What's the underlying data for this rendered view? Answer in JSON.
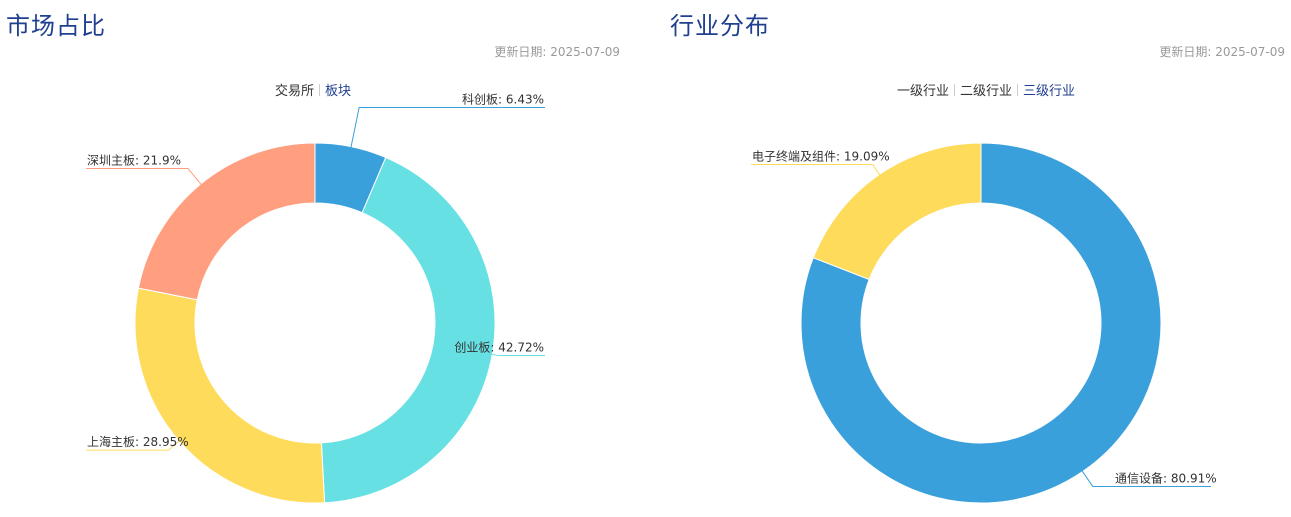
{
  "left": {
    "title": "市场占比",
    "update_date": "更新日期: 2025-07-09",
    "tabs": [
      {
        "label": "交易所",
        "active": false
      },
      {
        "label": "板块",
        "active": true
      }
    ]
  },
  "right": {
    "title": "行业分布",
    "update_date": "更新日期: 2025-07-09",
    "tabs": [
      {
        "label": "一级行业",
        "active": false
      },
      {
        "label": "二级行业",
        "active": false
      },
      {
        "label": "三级行业",
        "active": true
      }
    ]
  },
  "chart_data": [
    {
      "type": "pie",
      "title": "",
      "donut": true,
      "slices": [
        {
          "label": "科创板",
          "value": 6.43,
          "display": "科创板: 6.43%",
          "color": "#3aa0db"
        },
        {
          "label": "创业板",
          "value": 42.72,
          "display": "创业板: 42.72%",
          "color": "#67e0e3"
        },
        {
          "label": "上海主板",
          "value": 28.95,
          "display": "上海主板: 28.95%",
          "color": "#ffdb5c"
        },
        {
          "label": "深圳主板",
          "value": 21.9,
          "display": "深圳主板: 21.9%",
          "color": "#ff9f7f"
        }
      ]
    },
    {
      "type": "pie",
      "title": "",
      "donut": true,
      "slices": [
        {
          "label": "通信设备",
          "value": 80.91,
          "display": "通信设备: 80.91%",
          "color": "#3aa0db"
        },
        {
          "label": "电子终端及组件",
          "value": 19.09,
          "display": "电子终端及组件: 19.09%",
          "color": "#ffdb5c"
        }
      ]
    }
  ]
}
